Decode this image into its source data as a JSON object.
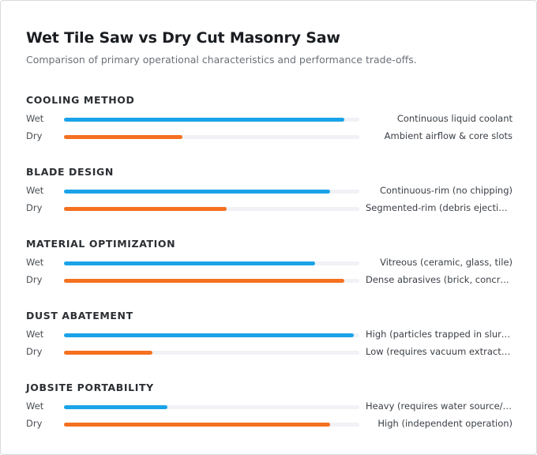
{
  "title": "Wet Tile Saw vs Dry Cut Masonry Saw",
  "subtitle": "Comparison of primary operational characteristics and performance trade-offs.",
  "colors": {
    "wet": "#1aa3e8",
    "dry": "#f5701f",
    "track": "#f0f2f5"
  },
  "chart_data": {
    "type": "bar",
    "orientation": "horizontal",
    "title": "Wet Tile Saw vs Dry Cut Masonry Saw",
    "subtitle": "Comparison of primary operational characteristics and performance trade-offs.",
    "scale": [
      0,
      1
    ],
    "groups": [
      {
        "name": "COOLING METHOD",
        "rows": [
          {
            "label": "Wet",
            "value": 0.95,
            "description": "Continuous liquid coolant"
          },
          {
            "label": "Dry",
            "value": 0.4,
            "description": "Ambient airflow & core slots"
          }
        ]
      },
      {
        "name": "BLADE DESIGN",
        "rows": [
          {
            "label": "Wet",
            "value": 0.9,
            "description": "Continuous-rim (no chipping)"
          },
          {
            "label": "Dry",
            "value": 0.55,
            "description": "Segmented-rim (debris ejection)"
          }
        ]
      },
      {
        "name": "MATERIAL OPTIMIZATION",
        "rows": [
          {
            "label": "Wet",
            "value": 0.85,
            "description": "Vitreous (ceramic, glass, tile)"
          },
          {
            "label": "Dry",
            "value": 0.95,
            "description": "Dense abrasives (brick, concrete)"
          }
        ]
      },
      {
        "name": "DUST ABATEMENT",
        "rows": [
          {
            "label": "Wet",
            "value": 0.98,
            "description": "High (particles trapped in slurry)"
          },
          {
            "label": "Dry",
            "value": 0.3,
            "description": "Low (requires vacuum extraction)"
          }
        ]
      },
      {
        "name": "JOBSITE PORTABILITY",
        "rows": [
          {
            "label": "Wet",
            "value": 0.35,
            "description": "Heavy (requires water source/G…"
          },
          {
            "label": "Dry",
            "value": 0.9,
            "description": "High (independent operation)"
          }
        ]
      }
    ]
  }
}
